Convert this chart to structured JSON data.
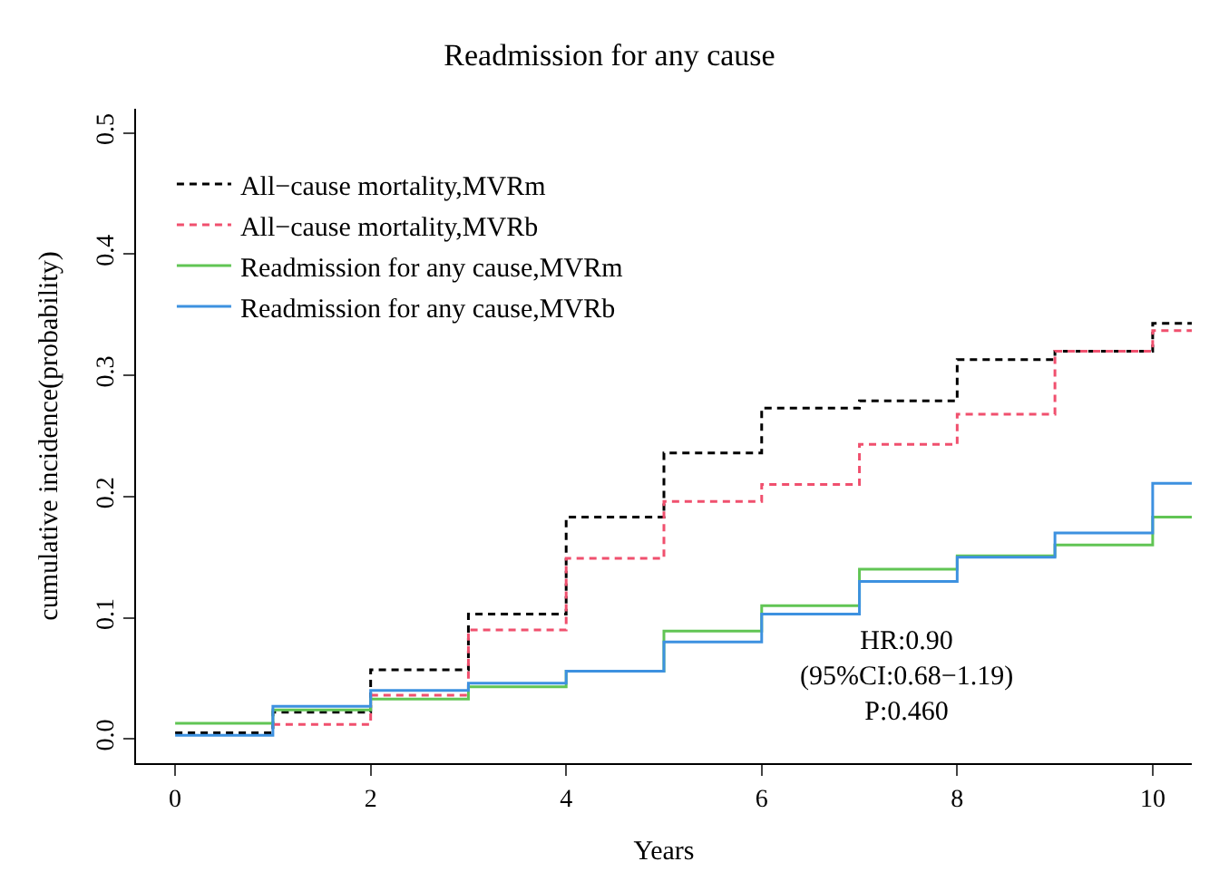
{
  "chart_data": {
    "type": "step",
    "title": "Readmission for any cause",
    "xlabel": "Years",
    "ylabel": "cumulative incidence(probability)",
    "x": [
      0,
      1,
      2,
      3,
      4,
      5,
      6,
      7,
      8,
      9,
      10,
      10.4
    ],
    "series": [
      {
        "name": "All−cause mortality,MVRm",
        "color": "#000000",
        "line_style": "dashed",
        "values": [
          0.005,
          0.022,
          0.057,
          0.103,
          0.183,
          0.236,
          0.273,
          0.279,
          0.313,
          0.32,
          0.343,
          0.343
        ]
      },
      {
        "name": "All−cause mortality,MVRb",
        "color": "#f0506e",
        "line_style": "dashed",
        "values": [
          null,
          0.012,
          0.036,
          0.09,
          0.149,
          0.196,
          0.21,
          0.243,
          0.268,
          0.32,
          0.337,
          0.337
        ]
      },
      {
        "name": "Readmission for any cause,MVRm",
        "color": "#61c554",
        "line_style": "solid",
        "values": [
          0.013,
          0.024,
          0.033,
          0.043,
          0.056,
          0.089,
          0.11,
          0.14,
          0.151,
          0.16,
          0.183,
          0.183
        ]
      },
      {
        "name": "Readmission for any cause,MVRb",
        "color": "#3d91e0",
        "line_style": "solid",
        "values": [
          0.003,
          0.027,
          0.04,
          0.046,
          0.056,
          0.08,
          0.103,
          0.13,
          0.15,
          0.17,
          0.211,
          0.211
        ]
      }
    ],
    "xlim": [
      -0.4,
      10.4
    ],
    "ylim": [
      -0.02,
      0.52
    ],
    "xticks": [
      0,
      2,
      4,
      6,
      8,
      10
    ],
    "yticks": [
      {
        "value": 0,
        "label": "0.0"
      },
      {
        "value": 0.1,
        "label": "0.1"
      },
      {
        "value": 0.2,
        "label": "0.2"
      },
      {
        "value": 0.3,
        "label": "0.3"
      },
      {
        "value": 0.4,
        "label": "0.4"
      },
      {
        "value": 0.5,
        "label": "0.5"
      }
    ],
    "annotations": [
      "HR:0.90\n(95%CI:0.68−1.19)\nP:0.460"
    ],
    "legend": "top left"
  }
}
